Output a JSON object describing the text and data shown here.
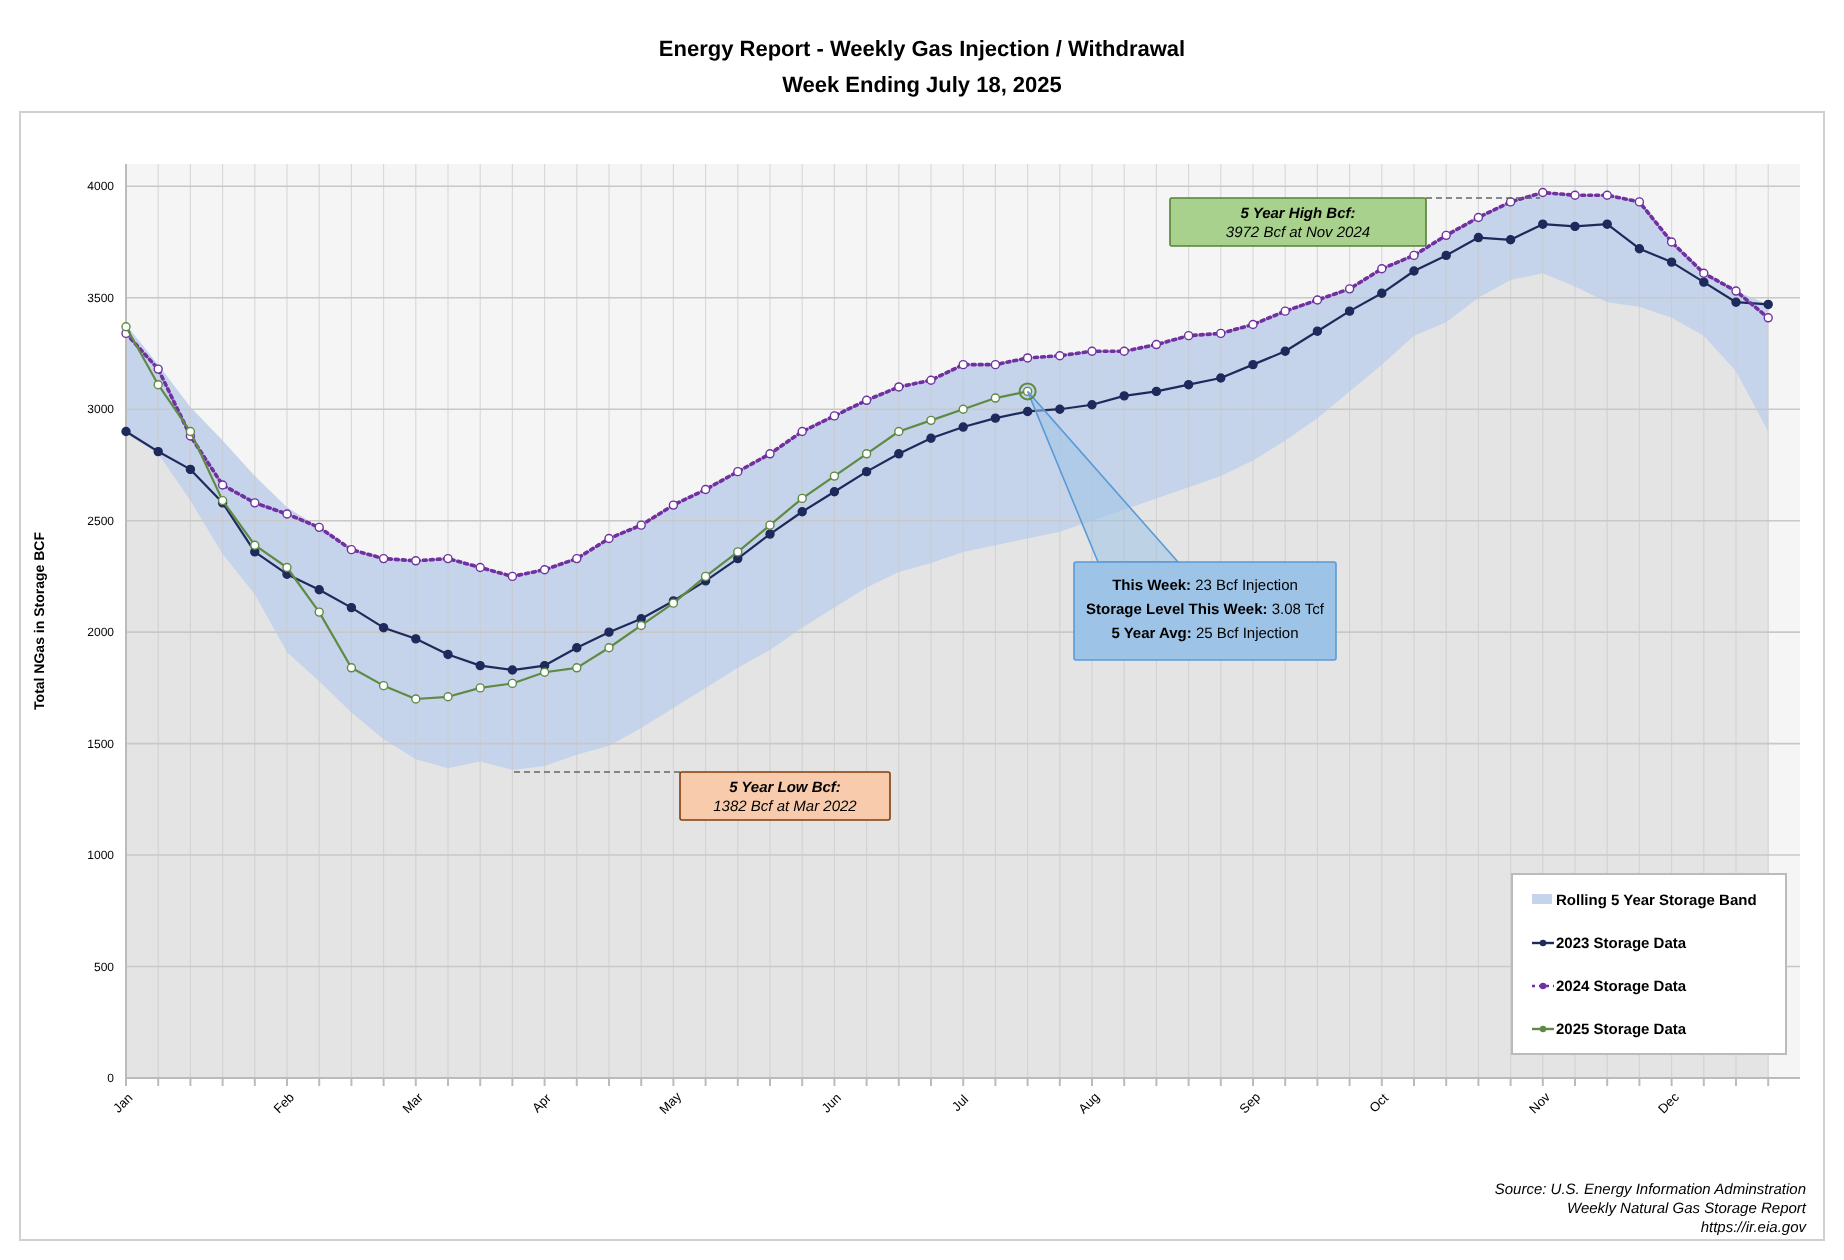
{
  "chart_data": {
    "type": "line",
    "title": "Energy Report - Weekly Gas Injection / Withdrawal",
    "subtitle": "Week Ending July 18, 2025",
    "ylabel": "Total NGas in Storage BCF",
    "categories": [
      "Jan",
      null,
      null,
      null,
      null,
      "Feb",
      null,
      null,
      null,
      "Mar",
      null,
      null,
      null,
      "Apr",
      null,
      null,
      null,
      "May",
      null,
      null,
      null,
      null,
      "Jun",
      null,
      null,
      null,
      "Jul",
      null,
      null,
      null,
      "Aug",
      null,
      null,
      null,
      null,
      "Sep",
      null,
      null,
      null,
      "Oct",
      null,
      null,
      null,
      null,
      "Nov",
      null,
      null,
      null,
      "Dec",
      null,
      null,
      null
    ],
    "ylim": [
      0,
      4100
    ],
    "yticks": [
      0,
      500,
      1000,
      1500,
      2000,
      2500,
      3000,
      3500,
      4000
    ],
    "grid": true,
    "legend": "bottom right",
    "series": [
      {
        "type": "area",
        "name": "Rolling 5 Year Storage Band",
        "color": "#c5d4ea",
        "values": [
          3380,
          3200,
          3010,
          2860,
          2700,
          2560,
          2470,
          2370,
          2330,
          2320,
          2330,
          2290,
          2250,
          2280,
          2330,
          2420,
          2480,
          2570,
          2640,
          2720,
          2800,
          2900,
          2970,
          3040,
          3100,
          3130,
          3200,
          3200,
          3230,
          3240,
          3260,
          3260,
          3290,
          3330,
          3340,
          3380,
          3440,
          3490,
          3540,
          3630,
          3690,
          3780,
          3860,
          3930,
          3972,
          3960,
          3960,
          3930,
          3750,
          3610,
          3530,
          3470
        ]
      },
      {
        "type": "area",
        "color": "#e4e4e4",
        "values": [
          2890,
          2800,
          2590,
          2350,
          2170,
          1910,
          1780,
          1640,
          1520,
          1430,
          1390,
          1420,
          1382,
          1400,
          1450,
          1490,
          1570,
          1660,
          1750,
          1840,
          1920,
          2020,
          2110,
          2200,
          2270,
          2310,
          2360,
          2390,
          2420,
          2450,
          2500,
          2550,
          2600,
          2650,
          2700,
          2770,
          2860,
          2960,
          3080,
          3200,
          3330,
          3390,
          3500,
          3580,
          3610,
          3550,
          3480,
          3460,
          3410,
          3330,
          3170,
          2900
        ]
      },
      {
        "name": "2023 Storage Data",
        "color": "#1f2a5c",
        "marker": "circle",
        "line_style": "solid",
        "values": [
          2900,
          2810,
          2730,
          2580,
          2360,
          2260,
          2190,
          2110,
          2020,
          1970,
          1900,
          1850,
          1830,
          1850,
          1930,
          2000,
          2060,
          2140,
          2230,
          2330,
          2440,
          2540,
          2630,
          2720,
          2800,
          2870,
          2920,
          2960,
          2990,
          3000,
          3020,
          3060,
          3080,
          3110,
          3140,
          3200,
          3260,
          3350,
          3440,
          3520,
          3620,
          3690,
          3770,
          3760,
          3830,
          3820,
          3830,
          3720,
          3660,
          3570,
          3480,
          3470
        ]
      },
      {
        "name": "2024 Storage Data",
        "color": "#7030a0",
        "marker": "circle",
        "line_style": "dotted",
        "values": [
          3340,
          3180,
          2880,
          2660,
          2580,
          2530,
          2470,
          2370,
          2330,
          2320,
          2330,
          2290,
          2250,
          2280,
          2330,
          2420,
          2480,
          2570,
          2640,
          2720,
          2800,
          2900,
          2970,
          3040,
          3100,
          3130,
          3200,
          3200,
          3230,
          3240,
          3260,
          3260,
          3290,
          3330,
          3340,
          3380,
          3440,
          3490,
          3540,
          3630,
          3690,
          3780,
          3860,
          3930,
          3972,
          3960,
          3960,
          3930,
          3750,
          3610,
          3530,
          3410
        ]
      },
      {
        "name": "2025 Storage Data",
        "color": "#5f8a43",
        "marker": "circle",
        "line_style": "solid",
        "values": [
          3370,
          3110,
          2900,
          2590,
          2390,
          2290,
          2090,
          1840,
          1760,
          1700,
          1710,
          1750,
          1770,
          1820,
          1840,
          1930,
          2030,
          2130,
          2250,
          2360,
          2480,
          2600,
          2700,
          2800,
          2900,
          2950,
          3000,
          3050,
          3080,
          null,
          null,
          null,
          null,
          null,
          null,
          null,
          null,
          null,
          null,
          null,
          null,
          null,
          null,
          null,
          null,
          null,
          null,
          null,
          null,
          null,
          null,
          null
        ]
      }
    ],
    "annotations": [
      "5 Year High Bcf:\n3972 Bcf at Nov 2024",
      "5 Year Low Bcf:\n1382 Bcf at Mar 2022",
      "This Week: 23 Bcf Injection\nStorage Level This Week: 3.08 Tcf\n5 Year Avg: 25 Bcf Injection",
      "Source: U.S. Energy Information Adminstration\nWeekly Natural Gas Storage Report\nhttps://ir.eia.gov"
    ]
  }
}
